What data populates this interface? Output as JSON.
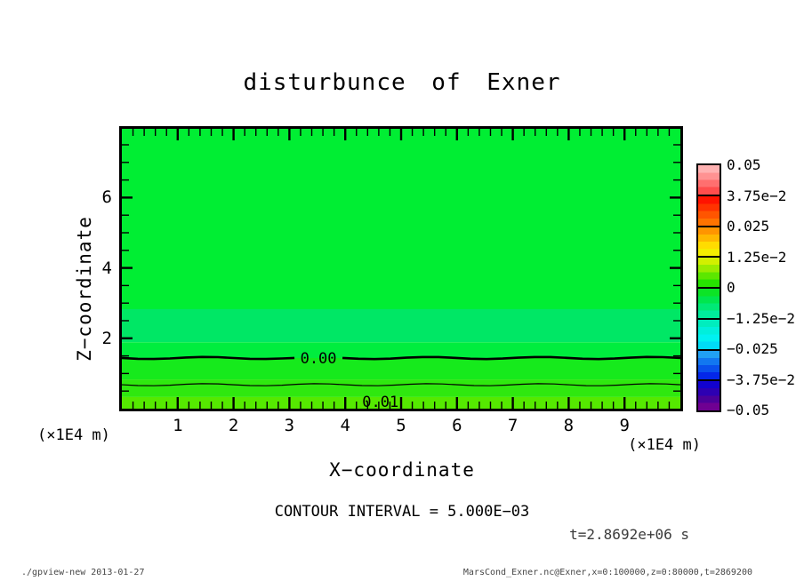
{
  "chart_data": {
    "type": "heatmap",
    "title": "disturbunce of Exner",
    "xlabel": "X−coordinate",
    "ylabel": "Z−coordinate",
    "x_unit_label": "(×1E4 m)",
    "y_unit_label": "(×1E4 m)",
    "contour_interval_text": "CONTOUR INTERVAL = 5.000E−03",
    "time_text": "t=2.8692e+06 s",
    "xlim": [
      0,
      10
    ],
    "zlim": [
      0,
      8
    ],
    "x_ticks_major": [
      1,
      2,
      3,
      4,
      5,
      6,
      7,
      8,
      9
    ],
    "x_tick_minor_step": 0.2,
    "z_ticks_major": [
      2,
      4,
      6
    ],
    "z_tick_minor_step": 0.5,
    "fill_bands": [
      {
        "z_top": 8.2,
        "z_bottom": 2.83,
        "color": "#00EE33"
      },
      {
        "z_top": 2.83,
        "z_bottom": 1.89,
        "color": "#00E765"
      },
      {
        "z_top": 1.89,
        "z_bottom": 1.44,
        "color": "#00ED3E"
      },
      {
        "z_top": 1.44,
        "z_bottom": 0.83,
        "color": "#16EA1C"
      },
      {
        "z_top": 0.83,
        "z_bottom": 0.33,
        "color": "#2FE80F"
      },
      {
        "z_top": 0.33,
        "z_bottom": 0.0,
        "color": "#55E900"
      }
    ],
    "contour_lines": [
      {
        "value": "0.00",
        "z": 1.44,
        "thick": true,
        "label": "0.00",
        "label_x": 3.52
      },
      {
        "value": "0.005",
        "z": 0.68,
        "thick": false,
        "label": null,
        "label_x": null
      }
    ],
    "extra_contour_labels": [
      {
        "text": "0.01",
        "x": 4.63,
        "z": 0.12
      }
    ],
    "colorbar": {
      "tick_labels": [
        "0.05",
        "3.75e−2",
        "0.025",
        "1.25e−2",
        "0",
        "−1.25e−2",
        "−0.025",
        "−3.75e−2",
        "−0.05"
      ],
      "segments": [
        {
          "colors": [
            "#ffb2b2",
            "#ff9292",
            "#ff6f6f",
            "#ff4d4d"
          ]
        },
        {
          "colors": [
            "#ff1300",
            "#ff3300",
            "#ff5500",
            "#ff7300"
          ]
        },
        {
          "colors": [
            "#ff9500",
            "#ffb800",
            "#ffdc00",
            "#f4ee00"
          ]
        },
        {
          "colors": [
            "#d2f000",
            "#9aec00",
            "#5ce700",
            "#27e300"
          ]
        },
        {
          "colors": [
            "#0ce426",
            "#00e64e",
            "#00e976",
            "#00eb9c"
          ]
        },
        {
          "colors": [
            "#00edbe",
            "#00efdc",
            "#00f1f1",
            "#00dcf6"
          ]
        },
        {
          "colors": [
            "#21a0f4",
            "#1277f0",
            "#0950ec",
            "#0427e9"
          ]
        },
        {
          "colors": [
            "#1202cf",
            "#2d00b2",
            "#4c0099",
            "#6f0092"
          ]
        }
      ]
    }
  },
  "footer": {
    "left": "./gpview-new  2013-01-27",
    "right": "MarsCond_Exner.nc@Exner,x=0:100000,z=0:80000,t=2869200"
  }
}
